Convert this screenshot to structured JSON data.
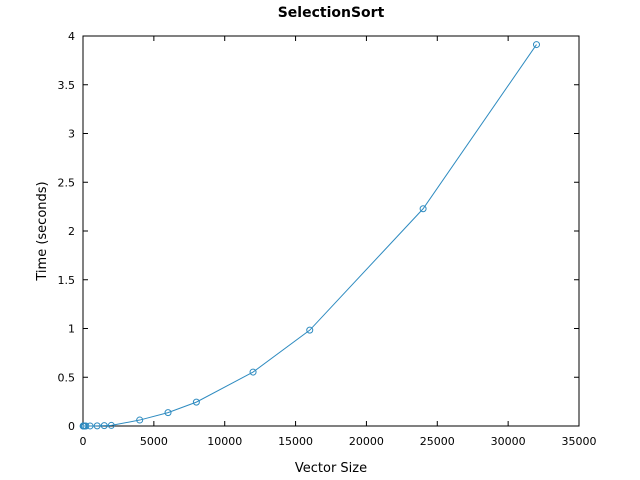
{
  "chart_data": {
    "type": "line",
    "title": "SelectionSort",
    "xlabel": "Vector Size",
    "ylabel": "Time (seconds)",
    "xlim": [
      0,
      35000
    ],
    "ylim": [
      0,
      4
    ],
    "xticks": [
      0,
      5000,
      10000,
      15000,
      20000,
      25000,
      30000,
      35000
    ],
    "yticks": [
      0,
      0.5,
      1,
      1.5,
      2,
      2.5,
      3,
      3.5,
      4
    ],
    "xtick_labels": [
      "0",
      "5000",
      "10000",
      "15000",
      "20000",
      "25000",
      "30000",
      "35000"
    ],
    "ytick_labels": [
      "0",
      "0.5",
      "1",
      "1.5",
      "2",
      "2.5",
      "3",
      "3.5",
      "4"
    ],
    "grid": false,
    "legend": false,
    "series": [
      {
        "color": "#2e8bc0",
        "marker": "circle",
        "x": [
          10,
          20,
          50,
          100,
          200,
          500,
          1000,
          1500,
          2000,
          4000,
          6000,
          8000,
          12000,
          16000,
          24000,
          32000
        ],
        "y": [
          0,
          0,
          0,
          0,
          0,
          0.0005,
          0.0015,
          0.0035,
          0.006,
          0.061,
          0.137,
          0.245,
          0.553,
          0.983,
          2.228,
          3.912
        ]
      }
    ]
  }
}
